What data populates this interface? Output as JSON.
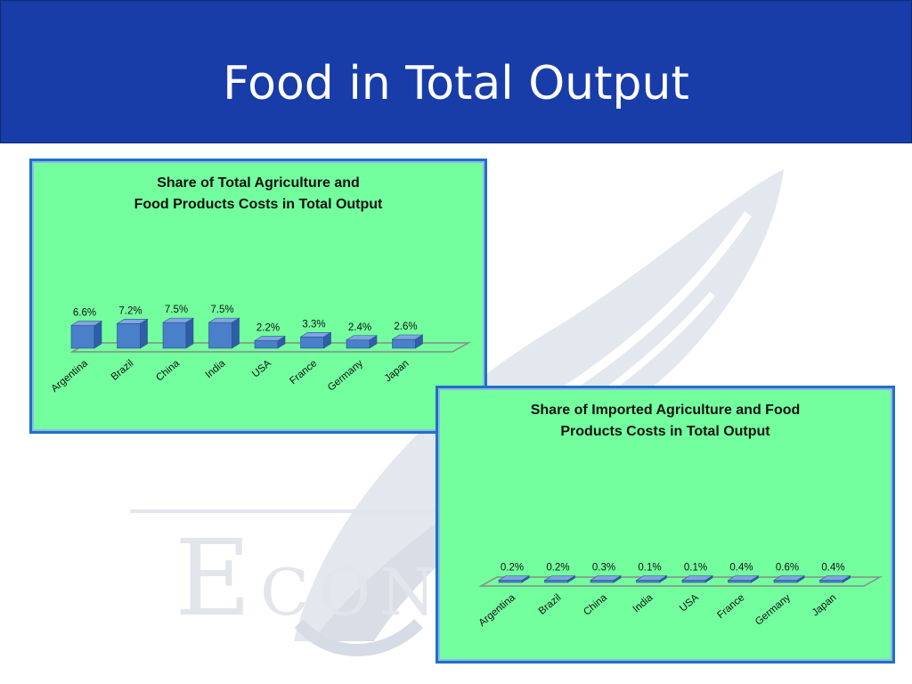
{
  "slide": {
    "title": "Food in Total Output",
    "watermark": {
      "initial": "E",
      "rest": "CON"
    },
    "colors": {
      "header": "#183da8",
      "panel": "#73ff9e",
      "panel_border": "#1f70c9",
      "bar_front": "#4a7fc9",
      "bar_top": "#7ea6e0",
      "bar_side": "#2f5ea8"
    }
  },
  "chart_data": [
    {
      "type": "bar",
      "title_lines": [
        "Share of Total Agriculture and",
        "Food Products Costs in Total Output"
      ],
      "categories": [
        "Argentina",
        "Brazil",
        "China",
        "India",
        "USA",
        "France",
        "Germany",
        "Japan"
      ],
      "values": [
        6.6,
        7.2,
        7.5,
        7.5,
        2.2,
        3.3,
        2.4,
        2.6
      ],
      "value_labels": [
        "6.6%",
        "7.2%",
        "7.5%",
        "7.5%",
        "2.2%",
        "3.3%",
        "2.4%",
        "2.6%"
      ],
      "unit": "%",
      "xlabel": "",
      "ylabel": "",
      "ylim": [
        0,
        10
      ],
      "grid": false,
      "legend": "none"
    },
    {
      "type": "bar",
      "title_lines": [
        "Share of Imported Agriculture and Food",
        "Products Costs in Total Output"
      ],
      "categories": [
        "Argentina",
        "Brazil",
        "China",
        "India",
        "USA",
        "France",
        "Germany",
        "Japan"
      ],
      "values": [
        0.2,
        0.2,
        0.3,
        0.1,
        0.1,
        0.4,
        0.6,
        0.4
      ],
      "value_labels": [
        "0.2%",
        "0.2%",
        "0.3%",
        "0.1%",
        "0.1%",
        "0.4%",
        "0.6%",
        "0.4%"
      ],
      "unit": "%",
      "xlabel": "",
      "ylabel": "",
      "ylim": [
        0,
        10
      ],
      "grid": false,
      "legend": "none"
    }
  ]
}
